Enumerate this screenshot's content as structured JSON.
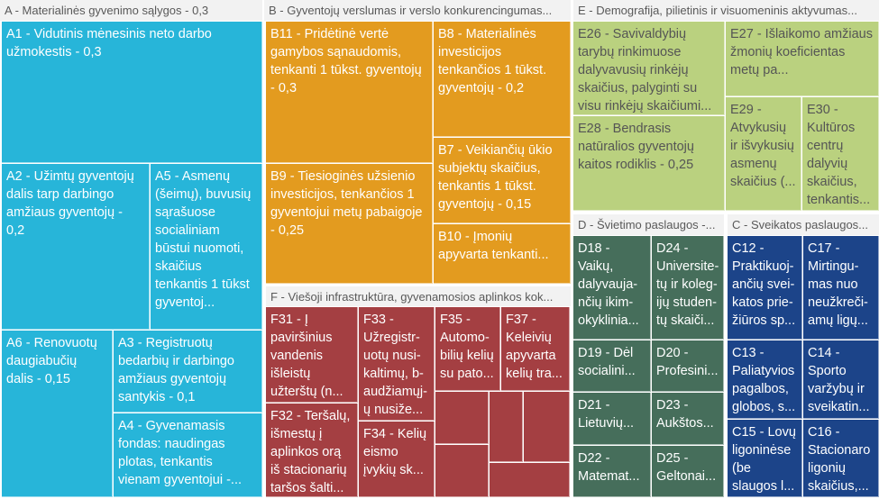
{
  "chart_data": {
    "type": "treemap",
    "colors": {
      "A": "#27b5d9",
      "B": "#e39b1f",
      "C": "#1c4489",
      "D": "#466e5b",
      "E": "#bad17f",
      "F": "#a43f42"
    },
    "groups": [
      {
        "id": "A",
        "label": "A - Materialinės gyvenimo sąlygos  - 0,3",
        "tiles": [
          {
            "id": "A1",
            "label": "A1 - Vidutinis mėnesinis neto darbo užmokestis - 0,3"
          },
          {
            "id": "A2",
            "label": "A2 - Užimtų gyventojų dalis tarp darbingo amžiaus gyventojų - 0,2"
          },
          {
            "id": "A5",
            "label": "A5 - Asmenų (šeimų), buvusių sąrašuose socialiniam būstui nuomoti, skaičius tenkantis 1 tūkst gyventoj..."
          },
          {
            "id": "A6",
            "label": "A6 - Renovuotų daugiabučių dalis - 0,15"
          },
          {
            "id": "A3",
            "label": "A3 - Registruotų bedarbių ir darbingo amžiaus gyventojų santykis - 0,1"
          },
          {
            "id": "A4",
            "label": "A4 - Gyvenamasis fondas: naudingas plotas, tenkantis vienam gyventojui -..."
          }
        ]
      },
      {
        "id": "B",
        "label": "B - Gyventojų verslumas ir verslo konkurencingumas...",
        "tiles": [
          {
            "id": "B11",
            "label": "B11 - Pridėtinė vertė gamybos sąnaudomis, tenkanti 1 tūkst. gyventojų - 0,3"
          },
          {
            "id": "B8",
            "label": "B8 - Materialinės investicijos tenkančios 1 tūkst. gyventojų - 0,2"
          },
          {
            "id": "B7",
            "label": "B7 - Veikiančių ūkio subjektų skaičius, tenkantis 1 tūkst. gyventojų - 0,15"
          },
          {
            "id": "B9",
            "label": "B9 - Tiesioginės užsienio investicijos, tenkančios 1 gyventojui metų pabaigoje - 0,25"
          },
          {
            "id": "B10",
            "label": "B10 - Įmonių apyvarta tenkanti..."
          }
        ]
      },
      {
        "id": "E",
        "label": "E - Demografija, pilietinis ir visuomeninis aktyvumas...",
        "tiles": [
          {
            "id": "E26",
            "label": "E26 - Savivaldybių tarybų rinkimuose dalyvavusių rinkėjų skaičius, palyginti su visu rinkėjų skaičiumi..."
          },
          {
            "id": "E28",
            "label": "E28 - Bendrasis natūralios gyventojų kaitos rodiklis - 0,25"
          },
          {
            "id": "E27",
            "label": "E27 - Išlaikomo amžiaus žmonių koeficientas metų pa..."
          },
          {
            "id": "E29",
            "label": "E29 - Atvykusių ir išvykusių asmenų skaičius (..."
          },
          {
            "id": "E30",
            "label": "E30 - Kultūros centrų dalyvių skaičius, tenkantis..."
          }
        ]
      },
      {
        "id": "F",
        "label": "F - Viešoji infrastruktūra, gyvenamosios aplinkos kok...",
        "tiles": [
          {
            "id": "F31",
            "label": "F31 - Į paviršinius vandenis išleistų užterštų (n..."
          },
          {
            "id": "F32",
            "label": "F32 - Teršalų, išmestų į aplinkos orą iš stacionarių taršos šalti..."
          },
          {
            "id": "F33",
            "label": "F33 - Užregistr-uotų nusi-kaltimų, b-audžiamųj-ų nusiže..."
          },
          {
            "id": "F34",
            "label": "F34 - Kelių eismo įvykių sk..."
          },
          {
            "id": "F35",
            "label": "F35 - Automo-bilių kelių su pato..."
          },
          {
            "id": "F37",
            "label": "F37 - Keleivių apyvarta kelių tra..."
          },
          {
            "id": "F_u1",
            "label": ""
          },
          {
            "id": "F_u2",
            "label": ""
          },
          {
            "id": "F_u3",
            "label": ""
          },
          {
            "id": "F_u4",
            "label": ""
          },
          {
            "id": "F_u5",
            "label": ""
          }
        ]
      },
      {
        "id": "D",
        "label": "D - Švietimo paslaugos  -...",
        "tiles": [
          {
            "id": "D18",
            "label": "D18 - Vaikų, dalyvauja-nčių ikim-okyklinia..."
          },
          {
            "id": "D24",
            "label": "D24 - Universite-tų ir koleg-ijų studen-tų skaiči..."
          },
          {
            "id": "D19",
            "label": "D19 - Dėl socialini..."
          },
          {
            "id": "D20",
            "label": "D20 - Profesini..."
          },
          {
            "id": "D21",
            "label": "D21 - Lietuvių..."
          },
          {
            "id": "D23",
            "label": "D23 - Aukštos..."
          },
          {
            "id": "D22",
            "label": "D22 - Matemat..."
          },
          {
            "id": "D25",
            "label": "D25 - Geltonai..."
          }
        ]
      },
      {
        "id": "C",
        "label": "C - Sveikatos paslaugos...",
        "tiles": [
          {
            "id": "C12",
            "label": "C12 - Praktikuoj-ančių svei-katos prie-žiūros sp..."
          },
          {
            "id": "C17",
            "label": "C17 - Mirtingu-mas nuo neužkreči-amų ligų..."
          },
          {
            "id": "C13",
            "label": "C13 - Paliatyvios pagalbos, globos, s..."
          },
          {
            "id": "C14",
            "label": "C14 - Sporto varžybų ir sveikatin..."
          },
          {
            "id": "C15",
            "label": "C15 - Lovų ligoninėse (be slaugos l..."
          },
          {
            "id": "C16",
            "label": "C16 - Stacionaro ligonių skaičius,..."
          }
        ]
      }
    ]
  }
}
